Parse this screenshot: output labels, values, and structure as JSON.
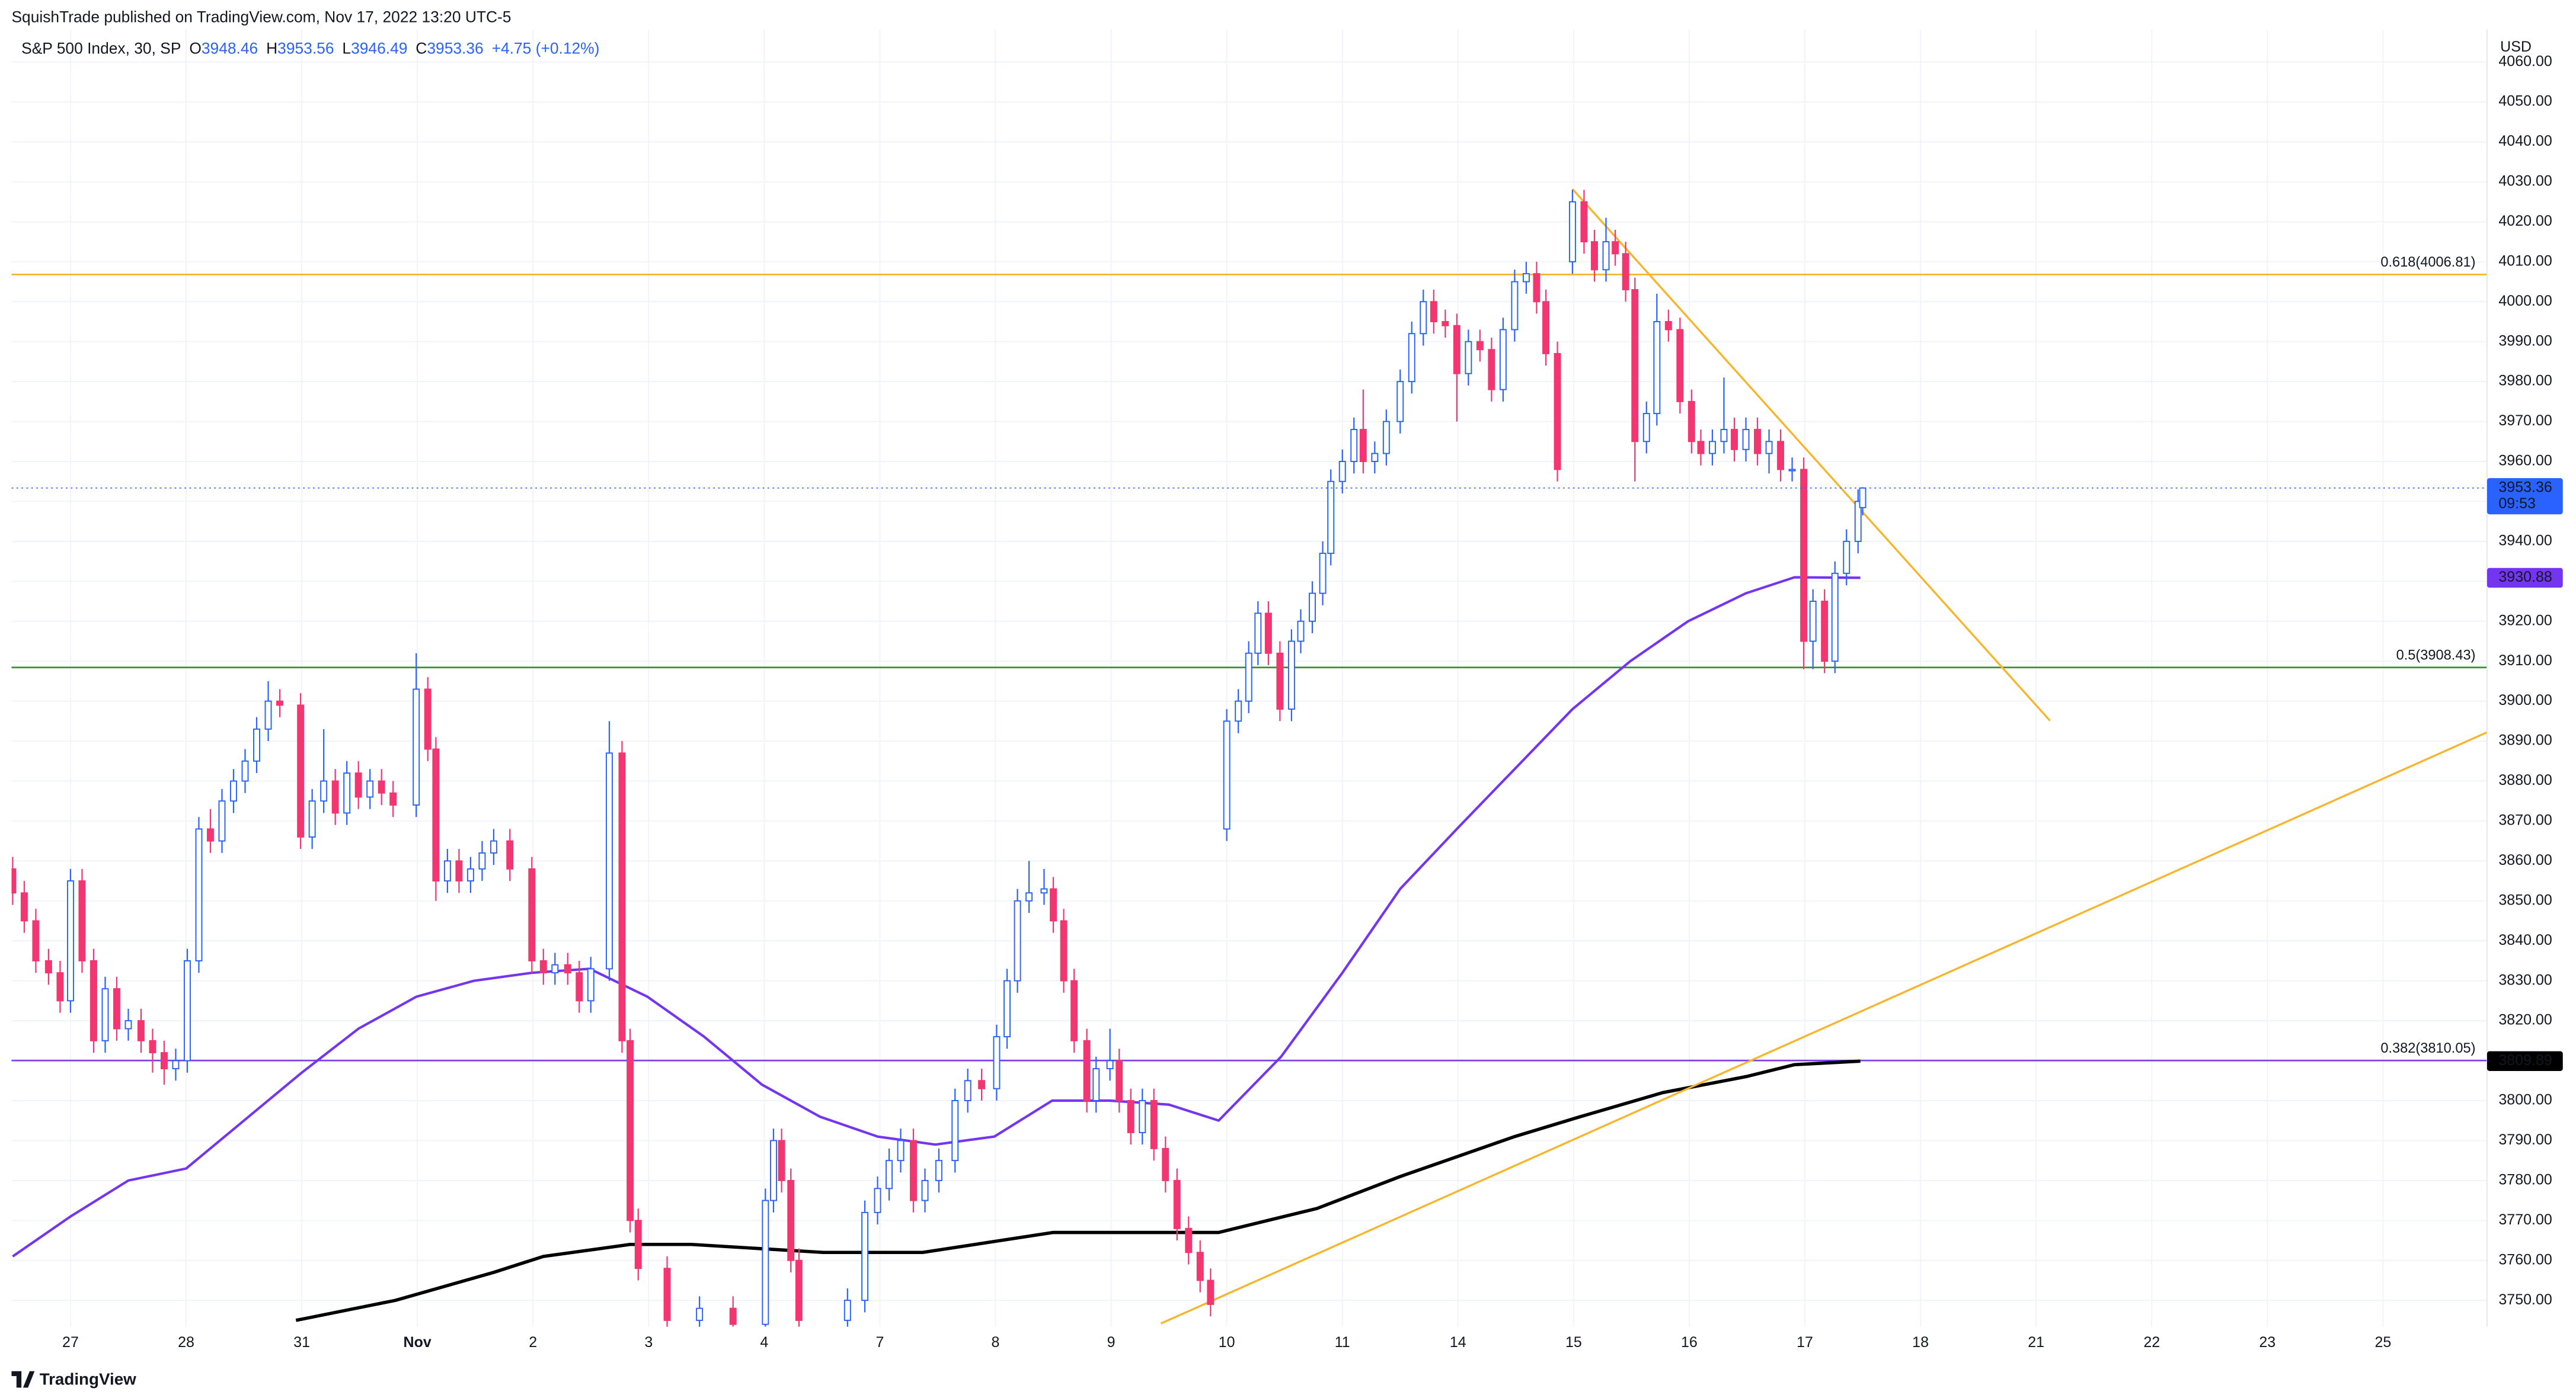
{
  "header": {
    "published": "SquishTrade published on TradingView.com, Nov 17, 2022 13:20 UTC-5"
  },
  "footer": "TradingView",
  "chart_data": {
    "type": "candlestick",
    "symbol": "S&P 500 Index, 30, SP",
    "ohlc_labels": [
      "O",
      "H",
      "L",
      "C"
    ],
    "change": "+4.75 (+0.12%)",
    "currency": "USD",
    "countdown": "09:53",
    "up_color": "#2962ff",
    "down_color": "#f23671",
    "grid": true,
    "xlim": [
      -0.51,
      20.9
    ],
    "ylim": [
      3743.4,
      4068.1
    ],
    "xticks": [
      {
        "value": 0,
        "label": "27"
      },
      {
        "value": 1,
        "label": "28"
      },
      {
        "value": 2,
        "label": "31"
      },
      {
        "value": 3,
        "label": "Nov"
      },
      {
        "value": 4,
        "label": "2"
      },
      {
        "value": 5,
        "label": "3"
      },
      {
        "value": 6,
        "label": "4"
      },
      {
        "value": 7,
        "label": "7"
      },
      {
        "value": 8,
        "label": "8"
      },
      {
        "value": 9,
        "label": "9"
      },
      {
        "value": 10,
        "label": "10"
      },
      {
        "value": 11,
        "label": "11"
      },
      {
        "value": 12,
        "label": "14"
      },
      {
        "value": 13,
        "label": "15"
      },
      {
        "value": 14,
        "label": "16"
      },
      {
        "value": 15,
        "label": "17"
      },
      {
        "value": 16,
        "label": "18"
      },
      {
        "value": 17,
        "label": "21"
      },
      {
        "value": 18,
        "label": "22"
      },
      {
        "value": 19,
        "label": "23"
      },
      {
        "value": 20,
        "label": "25"
      }
    ],
    "yticks": [
      {
        "value": 3750,
        "label": "3750.00"
      },
      {
        "value": 3760,
        "label": "3760.00"
      },
      {
        "value": 3770,
        "label": "3770.00"
      },
      {
        "value": 3780,
        "label": "3780.00"
      },
      {
        "value": 3790,
        "label": "3790.00"
      },
      {
        "value": 3800,
        "label": "3800.00"
      },
      {
        "value": 3810,
        "label": "3810.00"
      },
      {
        "value": 3820,
        "label": "3820.00"
      },
      {
        "value": 3830,
        "label": "3830.00"
      },
      {
        "value": 3840,
        "label": "3840.00"
      },
      {
        "value": 3850,
        "label": "3850.00"
      },
      {
        "value": 3860,
        "label": "3860.00"
      },
      {
        "value": 3870,
        "label": "3870.00"
      },
      {
        "value": 3880,
        "label": "3880.00"
      },
      {
        "value": 3890,
        "label": "3890.00"
      },
      {
        "value": 3900,
        "label": "3900.00"
      },
      {
        "value": 3910,
        "label": "3910.00"
      },
      {
        "value": 3920,
        "label": "3920.00"
      },
      {
        "value": 3930,
        "label": "3930.00"
      },
      {
        "value": 3940,
        "label": "3940.00"
      },
      {
        "value": 3950,
        "label": "3950.00"
      },
      {
        "value": 3960,
        "label": "3960.00"
      },
      {
        "value": 3970,
        "label": "3970.00"
      },
      {
        "value": 3980,
        "label": "3980.00"
      },
      {
        "value": 3990,
        "label": "3990.00"
      },
      {
        "value": 4000,
        "label": "4000.00"
      },
      {
        "value": 4010,
        "label": "4010.00"
      },
      {
        "value": 4020,
        "label": "4020.00"
      },
      {
        "value": 4030,
        "label": "4030.00"
      },
      {
        "value": 4040,
        "label": "4040.00"
      },
      {
        "value": 4050,
        "label": "4050.00"
      },
      {
        "value": 4060,
        "label": "4060.00"
      }
    ],
    "x": [
      -0.5,
      -0.4,
      -0.3,
      -0.19,
      -0.09,
      0,
      0.1,
      0.2,
      0.3,
      0.4,
      0.5,
      0.61,
      0.71,
      0.81,
      0.91,
      1.01,
      1.11,
      1.21,
      1.31,
      1.41,
      1.51,
      1.61,
      1.71,
      1.81,
      1.99,
      2.09,
      2.19,
      2.29,
      2.39,
      2.49,
      2.59,
      2.69,
      2.79,
      2.99,
      3.09,
      3.16,
      3.26,
      3.36,
      3.46,
      3.56,
      3.66,
      3.8,
      3.99,
      4.09,
      4.19,
      4.3,
      4.4,
      4.5,
      4.66,
      4.77,
      4.84,
      4.91,
      5.16,
      5.44,
      5.73,
      6.01,
      6.08,
      6.15,
      6.23,
      6.3,
      6.72,
      6.87,
      6.98,
      7.08,
      7.18,
      7.29,
      7.39,
      7.51,
      7.65,
      7.76,
      7.88,
      8.01,
      8.1,
      8.19,
      8.29,
      8.42,
      8.5,
      8.59,
      8.68,
      8.79,
      8.87,
      8.99,
      9.07,
      9.17,
      9.27,
      9.37,
      9.47,
      9.57,
      9.67,
      9.77,
      9.86,
      10,
      10.1,
      10.19,
      10.27,
      10.36,
      10.46,
      10.56,
      10.64,
      10.74,
      10.83,
      10.9,
      11,
      11.1,
      11.18,
      11.28,
      11.38,
      11.5,
      11.6,
      11.7,
      11.79,
      11.89,
      11.99,
      12.09,
      12.19,
      12.29,
      12.39,
      12.49,
      12.59,
      12.68,
      12.76,
      12.86,
      12.99,
      13.09,
      13.18,
      13.28,
      13.36,
      13.45,
      13.53,
      13.63,
      13.72,
      13.82,
      13.92,
      14.02,
      14.1,
      14.2,
      14.3,
      14.39,
      14.49,
      14.59,
      14.69,
      14.79,
      14.89,
      14.99,
      15.07,
      15.17,
      15.26,
      15.36,
      15.46,
      15.5
    ],
    "open": [
      3858,
      3852,
      3845,
      3835,
      3832,
      3825,
      3855,
      3835,
      3815,
      3828,
      3818,
      3820,
      3815,
      3812,
      3808,
      3810,
      3835,
      3868,
      3865,
      3875,
      3880,
      3885,
      3893,
      3900,
      3899,
      3866,
      3875,
      3880,
      3872,
      3882,
      3876,
      3880,
      3877,
      3874,
      3903,
      3888,
      3855,
      3860,
      3855,
      3858,
      3862,
      3865,
      3858,
      3835,
      3832,
      3834,
      3832,
      3825,
      3833,
      3887,
      3815,
      3770,
      3758,
      3745,
      3748,
      3744,
      3775,
      3790,
      3780,
      3760,
      3745,
      3750,
      3772,
      3778,
      3785,
      3790,
      3775,
      3780,
      3785,
      3800,
      3805,
      3803,
      3816,
      3830,
      3850,
      3852,
      3853,
      3845,
      3830,
      3815,
      3800,
      3808,
      3810,
      3800,
      3792,
      3800,
      3788,
      3780,
      3768,
      3762,
      3755,
      3868,
      3895,
      3900,
      3912,
      3922,
      3912,
      3898,
      3915,
      3920,
      3927,
      3937,
      3955,
      3960,
      3968,
      3960,
      3962,
      3970,
      3980,
      3992,
      4000,
      3995,
      3994,
      3982,
      3990,
      3988,
      3978,
      3993,
      4005,
      4007,
      4000,
      3987,
      4010,
      4025,
      4015,
      4008,
      4015,
      4012,
      4003,
      3965,
      3972,
      3995,
      3993,
      3975,
      3965,
      3962,
      3965,
      3968,
      3963,
      3968,
      3962,
      3965,
      3958,
      3958,
      3915,
      3925,
      3910,
      3932,
      3940,
      3948.46
    ],
    "high": [
      3861,
      3855,
      3848,
      3838,
      3835,
      3858,
      3858,
      3838,
      3831,
      3831,
      3823,
      3823,
      3818,
      3815,
      3813,
      3838,
      3871,
      3873,
      3878,
      3883,
      3888,
      3896,
      3905,
      3903,
      3902,
      3878,
      3893,
      3883,
      3885,
      3885,
      3883,
      3883,
      3880,
      3912,
      3906,
      3891,
      3863,
      3863,
      3861,
      3865,
      3868,
      3868,
      3861,
      3838,
      3837,
      3837,
      3835,
      3836,
      3895,
      3890,
      3818,
      3773,
      3761,
      3751,
      3751,
      3778,
      3793,
      3793,
      3783,
      3763,
      3753,
      3775,
      3781,
      3788,
      3793,
      3793,
      3783,
      3788,
      3803,
      3808,
      3808,
      3819,
      3833,
      3853,
      3860,
      3858,
      3856,
      3848,
      3833,
      3818,
      3811,
      3818,
      3813,
      3803,
      3803,
      3803,
      3791,
      3783,
      3771,
      3765,
      3758,
      3898,
      3903,
      3915,
      3925,
      3925,
      3915,
      3918,
      3923,
      3930,
      3940,
      3958,
      3963,
      3971,
      3978,
      3965,
      3973,
      3983,
      3995,
      4003,
      4003,
      3998,
      3997,
      3993,
      3993,
      3991,
      3996,
      4008,
      4010,
      4010,
      4003,
      3990,
      4028,
      4028,
      4018,
      4021,
      4018,
      4015,
      4006,
      3975,
      4002,
      3998,
      3996,
      3978,
      3968,
      3968,
      3981,
      3971,
      3971,
      3971,
      3968,
      3968,
      3961,
      3961,
      3928,
      3928,
      3935,
      3943,
      3953,
      3953.56
    ],
    "low": [
      3849,
      3842,
      3832,
      3829,
      3822,
      3822,
      3832,
      3812,
      3812,
      3815,
      3815,
      3812,
      3807,
      3804,
      3805,
      3807,
      3832,
      3862,
      3862,
      3872,
      3877,
      3882,
      3890,
      3896,
      3863,
      3863,
      3872,
      3869,
      3869,
      3873,
      3873,
      3874,
      3871,
      3871,
      3885,
      3850,
      3852,
      3852,
      3852,
      3855,
      3859,
      3855,
      3832,
      3829,
      3829,
      3829,
      3822,
      3822,
      3830,
      3812,
      3767,
      3755,
      3742,
      3742,
      3741,
      3741,
      3772,
      3777,
      3757,
      3742,
      3742,
      3747,
      3769,
      3775,
      3782,
      3772,
      3772,
      3777,
      3782,
      3797,
      3800,
      3800,
      3813,
      3827,
      3847,
      3849,
      3842,
      3827,
      3812,
      3797,
      3797,
      3805,
      3797,
      3789,
      3789,
      3785,
      3777,
      3765,
      3759,
      3752,
      3746,
      3865,
      3892,
      3897,
      3909,
      3909,
      3895,
      3895,
      3912,
      3917,
      3924,
      3934,
      3952,
      3957,
      3957,
      3957,
      3959,
      3967,
      3977,
      3989,
      3992,
      3991,
      3970,
      3979,
      3985,
      3975,
      3975,
      3990,
      4002,
      3997,
      3984,
      3955,
      4007,
      4012,
      4005,
      4005,
      4009,
      4000,
      3955,
      3962,
      3969,
      3990,
      3972,
      3962,
      3959,
      3959,
      3962,
      3960,
      3960,
      3959,
      3957,
      3955,
      3955,
      3908,
      3908,
      3907,
      3907,
      3929,
      3937,
      3946.49
    ],
    "close": [
      3852,
      3845,
      3835,
      3832,
      3825,
      3855,
      3835,
      3815,
      3828,
      3818,
      3820,
      3815,
      3812,
      3808,
      3810,
      3835,
      3868,
      3865,
      3875,
      3880,
      3885,
      3893,
      3900,
      3899,
      3866,
      3875,
      3880,
      3872,
      3882,
      3876,
      3880,
      3877,
      3874,
      3903,
      3888,
      3855,
      3860,
      3855,
      3858,
      3862,
      3865,
      3858,
      3835,
      3832,
      3834,
      3832,
      3825,
      3833,
      3887,
      3815,
      3770,
      3758,
      3745,
      3748,
      3744,
      3775,
      3790,
      3780,
      3760,
      3745,
      3750,
      3772,
      3778,
      3785,
      3790,
      3775,
      3780,
      3785,
      3800,
      3805,
      3803,
      3816,
      3830,
      3850,
      3852,
      3853,
      3845,
      3830,
      3815,
      3800,
      3808,
      3810,
      3800,
      3792,
      3800,
      3788,
      3780,
      3768,
      3762,
      3755,
      3749,
      3895,
      3900,
      3912,
      3922,
      3912,
      3898,
      3915,
      3920,
      3927,
      3937,
      3955,
      3960,
      3968,
      3960,
      3962,
      3970,
      3980,
      3992,
      4000,
      3995,
      3994,
      3982,
      3990,
      3988,
      3978,
      3993,
      4005,
      4007,
      4000,
      3987,
      3958,
      4025,
      4015,
      4008,
      4015,
      4012,
      4003,
      3965,
      3972,
      3995,
      3993,
      3975,
      3965,
      3962,
      3965,
      3968,
      3963,
      3968,
      3962,
      3965,
      3958,
      3958,
      3915,
      3925,
      3910,
      3932,
      3940,
      3950,
      3953.36
    ],
    "moving_averages": [
      {
        "color": "#7435f0",
        "width": 1.5,
        "x": [
          -0.5,
          0,
          0.5,
          1,
          1.5,
          2,
          2.49,
          2.99,
          3.49,
          3.99,
          4.49,
          4.99,
          5.48,
          5.98,
          6.48,
          6.98,
          7.48,
          7.99,
          8.49,
          8.99,
          9.5,
          9.93,
          10.47,
          11,
          11.5,
          11.99,
          12.49,
          12.99,
          13.49,
          13.99,
          14.49,
          14.91,
          15.48
        ],
        "values": [
          3761,
          3771,
          3780,
          3783,
          3795,
          3807,
          3818,
          3826,
          3830,
          3832,
          3833,
          3826,
          3816,
          3804,
          3796,
          3791,
          3789,
          3791,
          3800,
          3800,
          3799,
          3795,
          3811,
          3832,
          3853,
          3868,
          3883,
          3898,
          3910,
          3920,
          3927,
          3931,
          3930.88
        ]
      },
      {
        "color": "#000000",
        "width": 2,
        "x": [
          1.95,
          2.81,
          3.66,
          4.09,
          4.84,
          5.37,
          6.51,
          7.37,
          8.5,
          9.36,
          9.93,
          10.78,
          11.5,
          12.49,
          13.06,
          13.77,
          14.49,
          14.91,
          15.48
        ],
        "values": [
          3745,
          3750,
          3757,
          3761,
          3764,
          3764,
          3762,
          3762,
          3767,
          3767,
          3767,
          3773,
          3781,
          3791,
          3796,
          3802,
          3806,
          3809,
          3809.89
        ]
      }
    ],
    "levels": [
      {
        "label": "0.618(4006.81)",
        "value": 4006.81,
        "color": "#f7b52c"
      },
      {
        "label": "0.5(3908.43)",
        "value": 3908.43,
        "color": "#388e3c"
      },
      {
        "label": "0.382(3810.05)",
        "value": 3810.05,
        "color": "#7e3ff2"
      }
    ],
    "trendlines": [
      {
        "color": "#f7b52c",
        "x": [
          12.99,
          17.12
        ],
        "values": [
          4028.2,
          3895.1
        ]
      },
      {
        "color": "#f7b52c",
        "x": [
          9.43,
          20.9
        ],
        "values": [
          3744.2,
          3892.2
        ]
      }
    ]
  }
}
